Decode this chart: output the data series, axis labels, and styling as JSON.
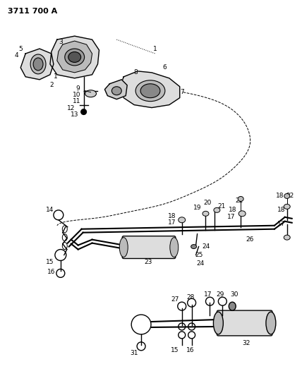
{
  "title": "3711 700 A",
  "bg_color": "#ffffff",
  "line_color": "#000000",
  "title_fontsize": 8,
  "label_fontsize": 6.5,
  "fig_width": 4.28,
  "fig_height": 5.33,
  "dpi": 100
}
